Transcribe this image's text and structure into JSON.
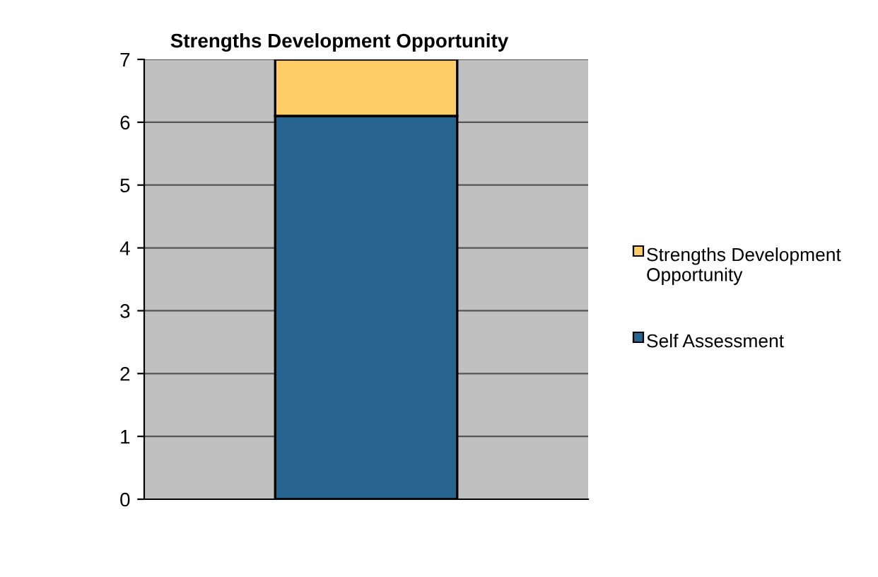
{
  "chart_data": {
    "type": "bar",
    "title": "Strengths Development Opportunity",
    "categories": [
      null
    ],
    "stacked": true,
    "series": [
      {
        "name": "Self Assessment",
        "color": "#27648f",
        "values": [
          6.1
        ]
      },
      {
        "name": "Strengths Development Opportunity",
        "color": "#ffcc66",
        "values": [
          0.9
        ]
      }
    ],
    "ylim": [
      0,
      7
    ],
    "yticks": [
      0,
      1,
      2,
      3,
      4,
      5,
      6,
      7
    ],
    "grid": "y",
    "legend": "right"
  }
}
